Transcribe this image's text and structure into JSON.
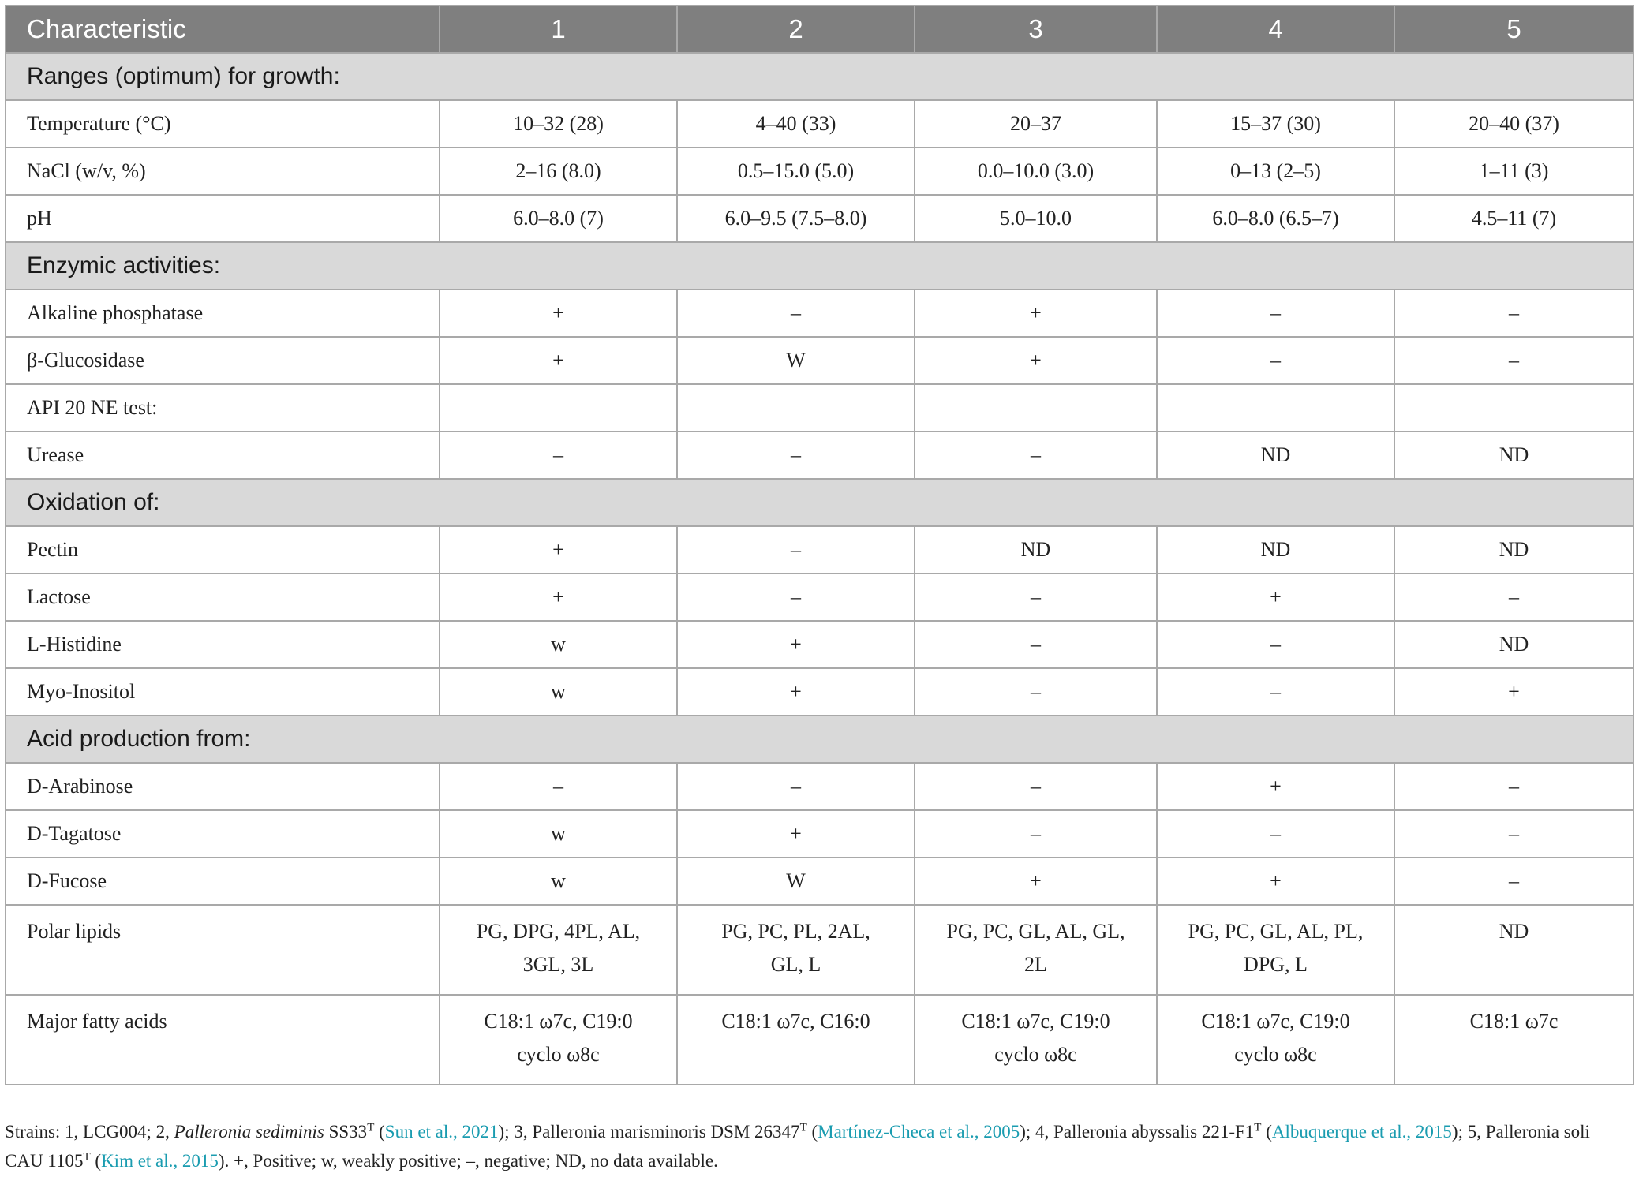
{
  "table": {
    "headers": [
      "Characteristic",
      "1",
      "2",
      "3",
      "4",
      "5"
    ],
    "sections": [
      {
        "title": "Ranges (optimum) for growth:",
        "rows": [
          {
            "label": "Temperature (°C)",
            "values": [
              "10–32 (28)",
              "4–40 (33)",
              "20–37",
              "15–37 (30)",
              "20–40 (37)"
            ]
          },
          {
            "label": "NaCl (w/v, %)",
            "values": [
              "2–16 (8.0)",
              "0.5–15.0 (5.0)",
              "0.0–10.0 (3.0)",
              "0–13 (2–5)",
              "1–11 (3)"
            ]
          },
          {
            "label": "pH",
            "values": [
              "6.0–8.0 (7)",
              "6.0–9.5 (7.5–8.0)",
              "5.0–10.0",
              "6.0–8.0 (6.5–7)",
              "4.5–11 (7)"
            ]
          }
        ]
      },
      {
        "title": "Enzymic activities:",
        "rows": [
          {
            "label": "Alkaline phosphatase",
            "values": [
              "+",
              "–",
              "+",
              "–",
              "–"
            ]
          },
          {
            "label": "β-Glucosidase",
            "values": [
              "+",
              "W",
              "+",
              "–",
              "–"
            ]
          },
          {
            "label": "API 20 NE test:",
            "values": [
              "",
              "",
              "",
              "",
              ""
            ]
          },
          {
            "label": "Urease",
            "values": [
              "–",
              "–",
              "–",
              "ND",
              "ND"
            ]
          }
        ]
      },
      {
        "title": "Oxidation of:",
        "rows": [
          {
            "label": "Pectin",
            "values": [
              "+",
              "–",
              "ND",
              "ND",
              "ND"
            ]
          },
          {
            "label": "Lactose",
            "values": [
              "+",
              "–",
              "–",
              "+",
              "–"
            ]
          },
          {
            "label": "L-Histidine",
            "values": [
              "w",
              "+",
              "–",
              "–",
              "ND"
            ]
          },
          {
            "label": "Myo-Inositol",
            "values": [
              "w",
              "+",
              "–",
              "–",
              "+"
            ]
          }
        ]
      },
      {
        "title": "Acid production from:",
        "rows": [
          {
            "label": "D-Arabinose",
            "values": [
              "–",
              "–",
              "–",
              "+",
              "–"
            ]
          },
          {
            "label": "D-Tagatose",
            "values": [
              "w",
              "+",
              "–",
              "–",
              "–"
            ]
          },
          {
            "label": "D-Fucose",
            "values": [
              "w",
              "W",
              "+",
              "+",
              "–"
            ]
          }
        ]
      }
    ],
    "tail_rows": [
      {
        "label": "Polar lipids",
        "values": [
          [
            "PG, DPG, 4PL, AL,",
            "3GL, 3L"
          ],
          [
            "PG, PC, PL, 2AL,",
            "GL, L"
          ],
          [
            "PG, PC, GL, AL, GL,",
            "2L"
          ],
          [
            "PG, PC, GL, AL, PL,",
            "DPG, L"
          ],
          [
            "ND",
            ""
          ]
        ]
      },
      {
        "label": "Major fatty acids",
        "values": [
          [
            "C18:1 ω7c, C19:0",
            "cyclo ω8c"
          ],
          [
            "C18:1 ω7c, C16:0",
            ""
          ],
          [
            "C18:1 ω7c, C19:0",
            "cyclo ω8c"
          ],
          [
            "C18:1 ω7c, C19:0",
            "cyclo ω8c"
          ],
          [
            "C18:1 ω7c",
            ""
          ]
        ]
      }
    ]
  },
  "footnote": {
    "p1": "Strains: 1, LCG004; 2, ",
    "p1_italic": "Palleronia sediminis",
    "p2": " SS33",
    "sup": "T",
    "p3": " (",
    "cite1": "Sun et al., 2021",
    "p4": "); 3, Palleronia marisminoris DSM 26347",
    "p5": " (",
    "cite2": "Martínez-Checa et al., 2005",
    "p6": "); 4, Palleronia abyssalis 221-F1",
    "p7": " (",
    "cite3": "Albuquerque et al., 2015",
    "p8": "); 5, Palleronia soli CAU 1105",
    "p9": " (",
    "cite4": "Kim et al., 2015",
    "p10": "). +, Positive; w, weakly positive; –, negative; ND, no data available."
  }
}
